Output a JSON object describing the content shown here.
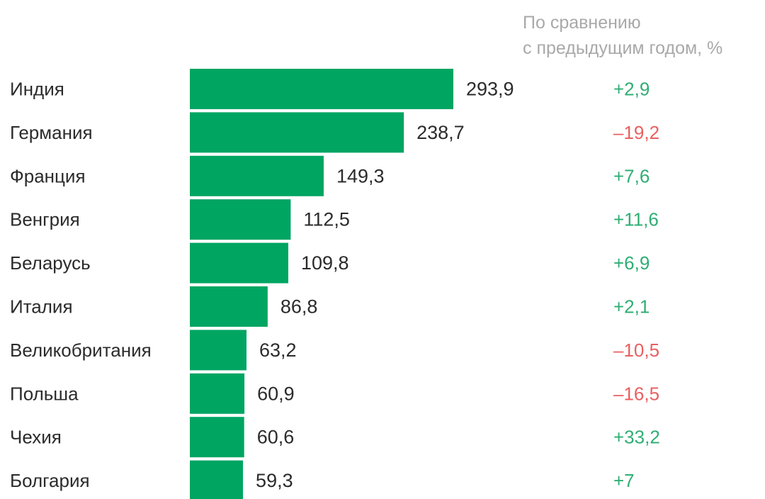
{
  "chart_data": {
    "type": "bar",
    "orientation": "horizontal",
    "categories": [
      "Индия",
      "Германия",
      "Франция",
      "Венгрия",
      "Беларусь",
      "Италия",
      "Великобритания",
      "Польша",
      "Чехия",
      "Болгария"
    ],
    "values": [
      293.9,
      238.7,
      149.3,
      112.5,
      109.8,
      86.8,
      63.2,
      60.9,
      60.6,
      59.3
    ],
    "value_labels": [
      "293,9",
      "238,7",
      "149,3",
      "112,5",
      "109,8",
      "86,8",
      "63,2",
      "60,9",
      "60,6",
      "59,3"
    ],
    "change_header": [
      "По сравнению",
      "с предыдущим годом, %"
    ],
    "changes": [
      2.9,
      -19.2,
      7.6,
      11.6,
      6.9,
      2.1,
      -10.5,
      -16.5,
      33.2,
      7
    ],
    "change_labels": [
      "+2,9",
      "–19,2",
      "+7,6",
      "+11,6",
      "+6,9",
      "+2,1",
      "–10,5",
      "–16,5",
      "+33,2",
      "+7"
    ],
    "bar_color": "#00a562",
    "positive_color": "#2fae74",
    "negative_color": "#e86060",
    "grid": false,
    "legend": "none"
  }
}
